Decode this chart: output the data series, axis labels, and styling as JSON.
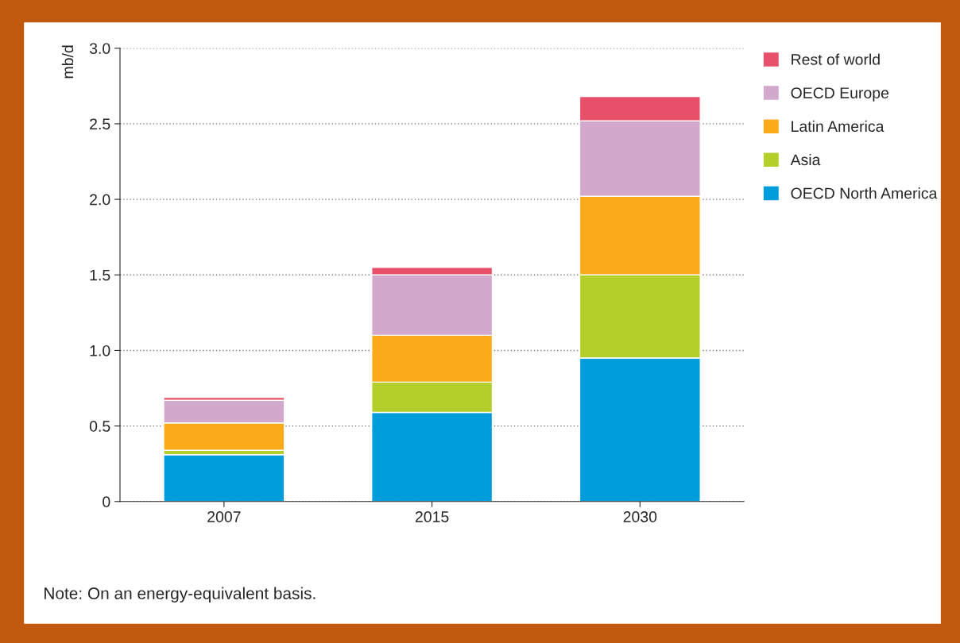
{
  "chart_data": {
    "type": "bar",
    "stacked": true,
    "ylabel": "mb/d",
    "categories": [
      "2007",
      "2015",
      "2030"
    ],
    "series": [
      {
        "name": "OECD North America",
        "color": "#009ddc",
        "values": [
          0.31,
          0.59,
          0.95
        ]
      },
      {
        "name": "Asia",
        "color": "#b5cf2a",
        "values": [
          0.03,
          0.2,
          0.55
        ]
      },
      {
        "name": "Latin America",
        "color": "#fbaa19",
        "values": [
          0.18,
          0.31,
          0.52
        ]
      },
      {
        "name": "OECD Europe",
        "color": "#d2a9cd",
        "values": [
          0.15,
          0.4,
          0.5
        ]
      },
      {
        "name": "Rest of world",
        "color": "#e8506a",
        "values": [
          0.02,
          0.05,
          0.16
        ]
      }
    ],
    "ylim": [
      0,
      3.0
    ],
    "yticks": [
      {
        "value": 0,
        "label": "0"
      },
      0.5,
      {
        "value": 1,
        "label": "1.0"
      },
      1.5,
      {
        "value": 2,
        "label": "2.0"
      },
      2.5,
      {
        "value": 3,
        "label": "3.0"
      }
    ],
    "grid": "y",
    "legend": "right",
    "annotations": [
      "Note: On an energy-equivalent basis."
    ]
  }
}
